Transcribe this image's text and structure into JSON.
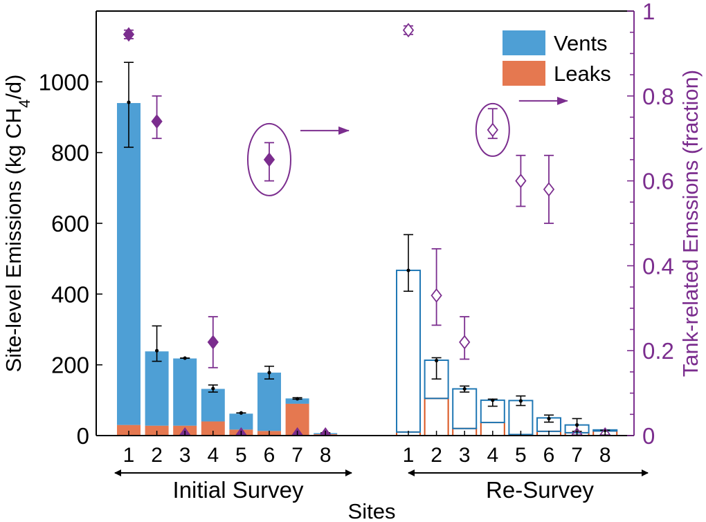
{
  "colors": {
    "vents": "#4E9FD5",
    "leaks": "#E57850",
    "tank": "#7B2D8E",
    "resurvey_vent_edge": "#1F77B4",
    "resurvey_leak_edge": "#D9541E",
    "axis": "#000000"
  },
  "chart_data": {
    "type": "bar",
    "title": "",
    "xlabel": "Sites",
    "ylabel_left": "Site-level Emissions (kg CH4/d)",
    "ylabel_left_prefix": "Site-level Emissions (kg CH",
    "ylabel_left_sub": "4",
    "ylabel_left_suffix": "/d)",
    "ylabel_right": "Tank-related Emssions (fraction)",
    "ylim_left": [
      0,
      1200
    ],
    "ylim_right": [
      0,
      1
    ],
    "yticks_left": [
      "0",
      "200",
      "400",
      "600",
      "800",
      "1000"
    ],
    "yticks_right": [
      "0",
      "0.2",
      "0.4",
      "0.6",
      "0.8",
      "1"
    ],
    "grid": false,
    "legend": {
      "placement": "top-right",
      "entries": [
        "Vents",
        "Leaks"
      ]
    },
    "groups": [
      {
        "label": "Initial Survey",
        "style": "filled",
        "sites": [
          "1",
          "2",
          "3",
          "4",
          "5",
          "6",
          "7",
          "8"
        ],
        "vents": [
          910,
          210,
          190,
          92,
          45,
          165,
          15,
          3
        ],
        "leaks": [
          30,
          28,
          28,
          40,
          17,
          13,
          90,
          4
        ],
        "total": [
          942,
          240,
          219,
          133,
          64,
          178,
          104,
          7
        ],
        "total_err_low": [
          815,
          210,
          219,
          123,
          64,
          160,
          103,
          6
        ],
        "total_err_high": [
          1055,
          310,
          219,
          143,
          64,
          196,
          107,
          8
        ],
        "tank_fraction": [
          0.945,
          0.74,
          0.005,
          0.22,
          0.005,
          0.65,
          0.005,
          0.005
        ],
        "tank_err_low": [
          0.935,
          0.7,
          0.005,
          0.16,
          0.005,
          0.6,
          0.005,
          0.005
        ],
        "tank_err_high": [
          0.955,
          0.8,
          0.005,
          0.28,
          0.005,
          0.69,
          0.005,
          0.005
        ]
      },
      {
        "label": "Re-Survey",
        "style": "outlined",
        "sites": [
          "1",
          "2",
          "3",
          "4",
          "5",
          "6",
          "7",
          "8"
        ],
        "vents": [
          457,
          108,
          112,
          63,
          96,
          38,
          22,
          3
        ],
        "leaks": [
          10,
          105,
          20,
          37,
          3,
          12,
          8,
          13
        ],
        "total": [
          467,
          212,
          132,
          100,
          98,
          48,
          30,
          15
        ],
        "total_err_low": [
          408,
          160,
          123,
          83,
          85,
          38,
          12,
          15
        ],
        "total_err_high": [
          568,
          220,
          140,
          103,
          112,
          58,
          48,
          15
        ],
        "tank_fraction": [
          0.955,
          0.33,
          0.22,
          0.72,
          0.6,
          0.58,
          0.005,
          0.005
        ],
        "tank_err_low": [
          0.945,
          0.26,
          0.18,
          0.7,
          0.54,
          0.5,
          0.005,
          0.005
        ],
        "tank_err_high": [
          0.965,
          0.44,
          0.28,
          0.77,
          0.66,
          0.66,
          0.005,
          0.005
        ]
      }
    ]
  }
}
